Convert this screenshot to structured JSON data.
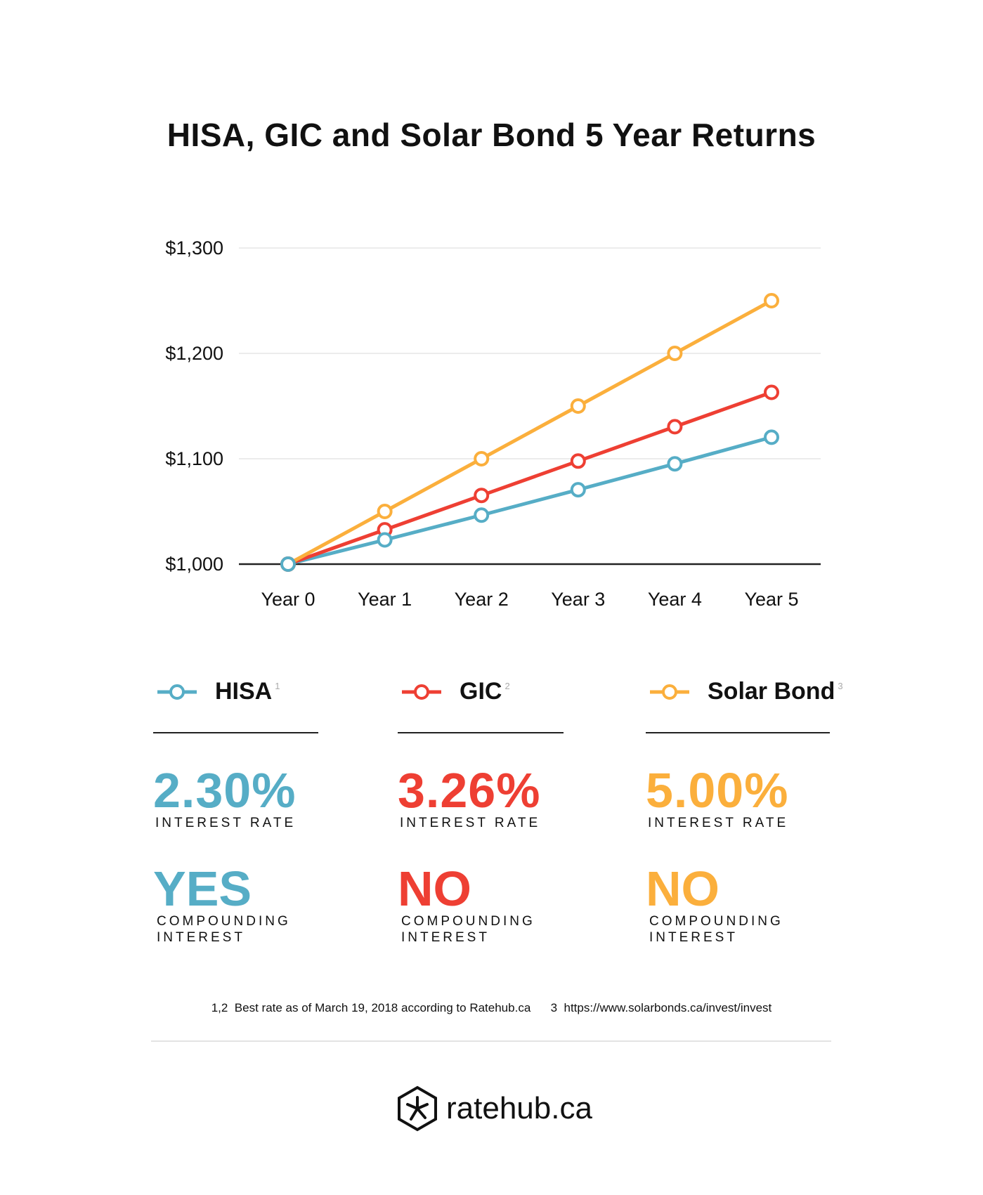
{
  "title": "HISA, GIC and Solar Bond 5 Year Returns",
  "chart_data": {
    "type": "line",
    "title": "HISA, GIC and Solar Bond 5 Year Returns",
    "categories": [
      "Year 0",
      "Year 1",
      "Year 2",
      "Year 3",
      "Year 4",
      "Year 5"
    ],
    "ylim": [
      1000,
      1300
    ],
    "yticks": [
      1000,
      1100,
      1200,
      1300
    ],
    "ytick_labels": [
      "$1,000",
      "$1,100",
      "$1,200",
      "$1,300"
    ],
    "grid": true,
    "legend": "bottom",
    "series": [
      {
        "name": "HISA",
        "color": "#56adc6",
        "values": [
          1000,
          1023,
          1046.5,
          1070.6,
          1095.2,
          1120.4
        ]
      },
      {
        "name": "GIC",
        "color": "#ee3f33",
        "values": [
          1000,
          1032.6,
          1065.2,
          1097.8,
          1130.4,
          1163
        ]
      },
      {
        "name": "Solar Bond",
        "color": "#fbaf3c",
        "values": [
          1000,
          1050,
          1100,
          1150,
          1200,
          1250
        ]
      }
    ]
  },
  "cards": [
    {
      "name": "HISA",
      "note": "1",
      "rate": "2.30%",
      "rate_label": "INTEREST RATE",
      "compounding": "YES",
      "compounding_label1": "COMPOUNDING",
      "compounding_label2": "INTEREST",
      "color": "#56adc6"
    },
    {
      "name": "GIC",
      "note": "2",
      "rate": "3.26%",
      "rate_label": "INTEREST RATE",
      "compounding": "NO",
      "compounding_label1": "COMPOUNDING",
      "compounding_label2": "INTEREST",
      "color": "#ee3f33"
    },
    {
      "name": "Solar Bond",
      "note": "3",
      "rate": "5.00%",
      "rate_label": "INTEREST RATE",
      "compounding": "NO",
      "compounding_label1": "COMPOUNDING",
      "compounding_label2": "INTEREST",
      "color": "#fbaf3c"
    }
  ],
  "footnote": "1,2  Best rate as of March 19, 2018 according to Ratehub.ca      3  https://www.solarbonds.ca/invest/invest",
  "logo": {
    "text": "ratehub.ca",
    "icon": "hexagon-asterisk-icon"
  }
}
